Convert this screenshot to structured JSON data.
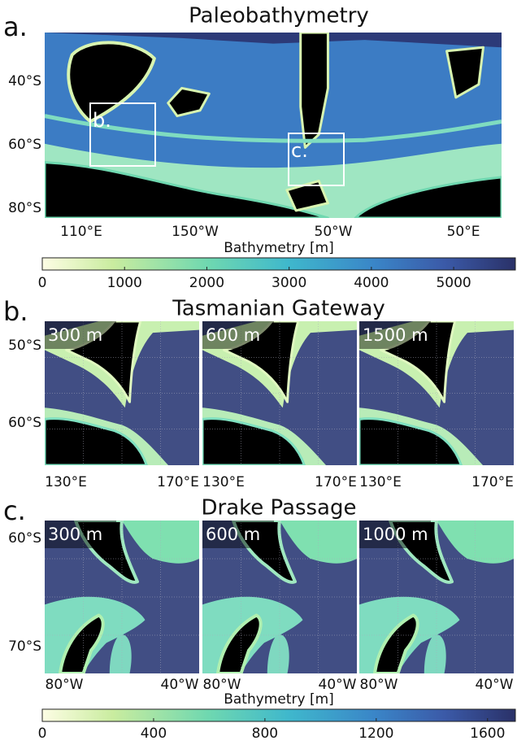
{
  "panels": [
    {
      "letter": "a.",
      "title": "Paleobathymetry",
      "yticks": [
        "40°S",
        "60°S",
        "80°S"
      ],
      "xticks": [
        "110°E",
        "150°W",
        "50°W",
        "50°E"
      ],
      "insets": [
        "b.",
        "c."
      ]
    },
    {
      "letter": "b.",
      "title": "Tasmanian Gateway",
      "maps": [
        "300 m",
        "600 m",
        "1500 m"
      ],
      "yticks": [
        "50°S",
        "60°S"
      ],
      "xticks": [
        "130°E",
        "170°E"
      ]
    },
    {
      "letter": "c.",
      "title": "Drake Passage",
      "maps": [
        "300 m",
        "600 m",
        "1000 m"
      ],
      "yticks": [
        "60°S",
        "70°S"
      ],
      "xticks": [
        "80°W",
        "40°W"
      ]
    }
  ],
  "colorbars": [
    {
      "label": "Bathymetry [m]",
      "lim": [
        0,
        5750
      ],
      "ticks": [
        0,
        1000,
        2000,
        3000,
        4000,
        5000
      ]
    },
    {
      "label": "Bathymetry [m]",
      "lim": [
        0,
        1700
      ],
      "ticks": [
        0,
        400,
        800,
        1200,
        1600
      ]
    }
  ]
}
